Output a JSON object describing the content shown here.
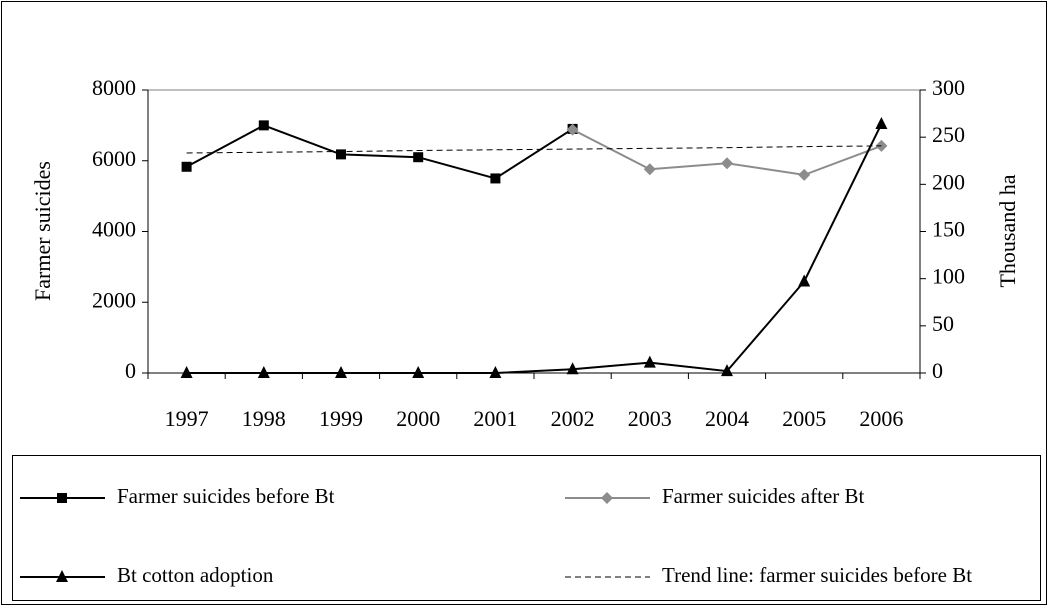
{
  "chart_data": {
    "type": "line",
    "y_label": "Farmer suicides",
    "y2_label": "Thousand ha",
    "categories": [
      "1997",
      "1998",
      "1999",
      "2000",
      "2001",
      "2002",
      "2003",
      "2004",
      "2005",
      "2006"
    ],
    "ylim": [
      0,
      8000
    ],
    "yticks": [
      0,
      2000,
      4000,
      6000,
      8000
    ],
    "y2lim": [
      0,
      300
    ],
    "y2ticks": [
      0,
      50,
      100,
      150,
      200,
      250,
      300
    ],
    "legend": "bottom",
    "series": [
      {
        "name": "Farmer suicides before Bt",
        "color": "#000000",
        "marker": "square",
        "line_style": "solid",
        "values": [
          5830,
          7000,
          6180,
          6100,
          5500,
          6900,
          null,
          null,
          null,
          null
        ]
      },
      {
        "name": "Farmer suicides after Bt",
        "color": "#8c8c8c",
        "marker": "diamond",
        "line_style": "solid",
        "values": [
          null,
          null,
          null,
          null,
          null,
          6880,
          5760,
          5930,
          5600,
          6420
        ]
      },
      {
        "name": "Bt cotton adoption",
        "color": "#000000",
        "marker": "triangle",
        "line_style": "solid",
        "axis": "y2",
        "values": [
          0,
          0,
          0,
          0,
          0,
          4,
          11,
          2,
          97,
          264
        ]
      },
      {
        "name": "Trend line: farmer suicides before Bt",
        "color": "#000000",
        "marker": "none",
        "line_style": "dashed",
        "values": [
          6220,
          6240,
          6260,
          6290,
          6310,
          6330,
          6350,
          6370,
          6400,
          6420
        ]
      }
    ]
  }
}
